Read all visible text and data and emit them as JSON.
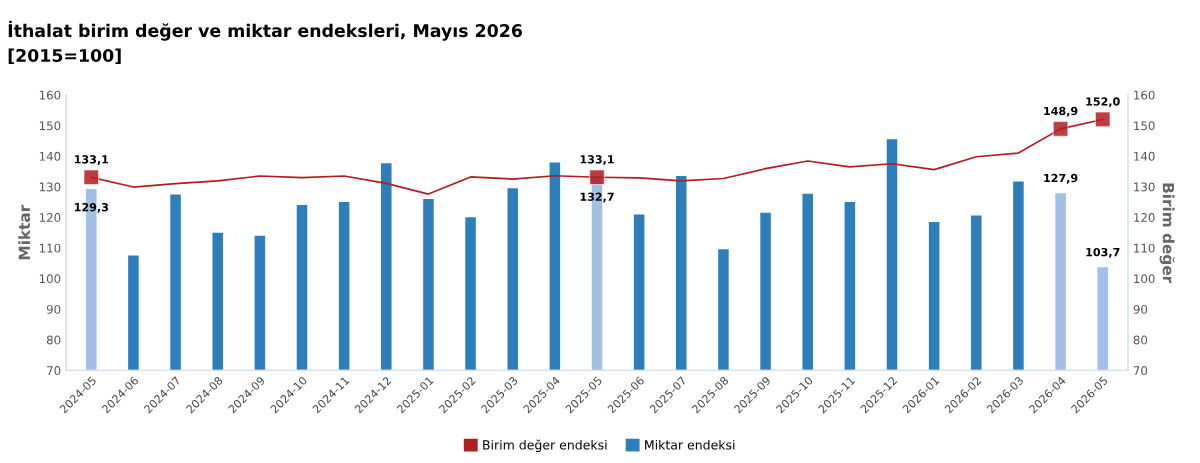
{
  "chart_data": {
    "type": "bar",
    "title": "İthalat birim değer ve miktar endeksleri, Mayıs 2026",
    "subtitle": "[2015=100]",
    "ylabel": "Miktar",
    "y2label": "Birim değer",
    "categories": [
      "2024-05",
      "2024-06",
      "2024-07",
      "2024-08",
      "2024-09",
      "2024-10",
      "2024-11",
      "2024-12",
      "2025-01",
      "2025-02",
      "2025-03",
      "2025-04",
      "2025-05",
      "2025-06",
      "2025-07",
      "2025-08",
      "2025-09",
      "2025-10",
      "2025-11",
      "2025-12",
      "2026-01",
      "2026-02",
      "2026-03",
      "2026-04",
      "2026-05"
    ],
    "series": [
      {
        "name": "Birim değer endeksi",
        "type": "line",
        "axis": "y2",
        "color": "#b01c22",
        "values": [
          133.1,
          129.9,
          131,
          131.9,
          133.5,
          133,
          133.5,
          131.1,
          127.6,
          133.2,
          132.5,
          133.6,
          133.1,
          132.9,
          131.9,
          132.7,
          135.9,
          138.4,
          136.5,
          137.5,
          135.6,
          139.8,
          141,
          148.9,
          152.0
        ]
      },
      {
        "type": "scatter",
        "axis": "y2",
        "color": "#b01c22",
        "marker": "square",
        "values": [
          133.1,
          null,
          null,
          null,
          null,
          null,
          null,
          null,
          null,
          null,
          null,
          null,
          133.1,
          null,
          null,
          null,
          null,
          null,
          null,
          null,
          null,
          null,
          null,
          148.9,
          152.0
        ],
        "value_labels": [
          "133,1",
          null,
          null,
          null,
          null,
          null,
          null,
          null,
          null,
          null,
          null,
          null,
          "133,1",
          null,
          null,
          null,
          null,
          null,
          null,
          null,
          null,
          null,
          null,
          "148,9",
          "152,0"
        ]
      },
      {
        "name": "Miktar endeksi",
        "color": "#2f7ebc",
        "colors": [
          "#a4bfe6",
          "#2f7ebc",
          "#2f7ebc",
          "#2f7ebc",
          "#2f7ebc",
          "#2f7ebc",
          "#2f7ebc",
          "#2f7ebc",
          "#2f7ebc",
          "#2f7ebc",
          "#2f7ebc",
          "#2f7ebc",
          "#a4bfe6",
          "#2f7ebc",
          "#2f7ebc",
          "#2f7ebc",
          "#2f7ebc",
          "#2f7ebc",
          "#2f7ebc",
          "#2f7ebc",
          "#2f7ebc",
          "#2f7ebc",
          "#2f7ebc",
          "#a4bfe6",
          "#a4bfe6"
        ],
        "values": [
          129.3,
          107.5,
          127.5,
          115,
          114,
          124,
          125,
          137.7,
          126,
          120,
          129.5,
          137.9,
          132.7,
          120.9,
          133.5,
          109.6,
          121.5,
          127.7,
          125,
          145.5,
          118.5,
          120.6,
          131.7,
          127.9,
          103.7
        ],
        "value_labels": [
          "129,3",
          null,
          null,
          null,
          null,
          null,
          null,
          null,
          null,
          null,
          null,
          null,
          "132,7",
          null,
          null,
          null,
          null,
          null,
          null,
          null,
          null,
          null,
          null,
          "127,9",
          "103,7"
        ]
      }
    ],
    "ylim": [
      70,
      160
    ],
    "yticks": [
      70,
      80,
      90,
      100,
      110,
      120,
      130,
      140,
      150,
      160
    ],
    "y2lim": [
      70,
      160
    ],
    "y2ticks": [
      70,
      80,
      90,
      100,
      110,
      120,
      130,
      140,
      150,
      160
    ],
    "grid": false,
    "legend": "bottom"
  }
}
